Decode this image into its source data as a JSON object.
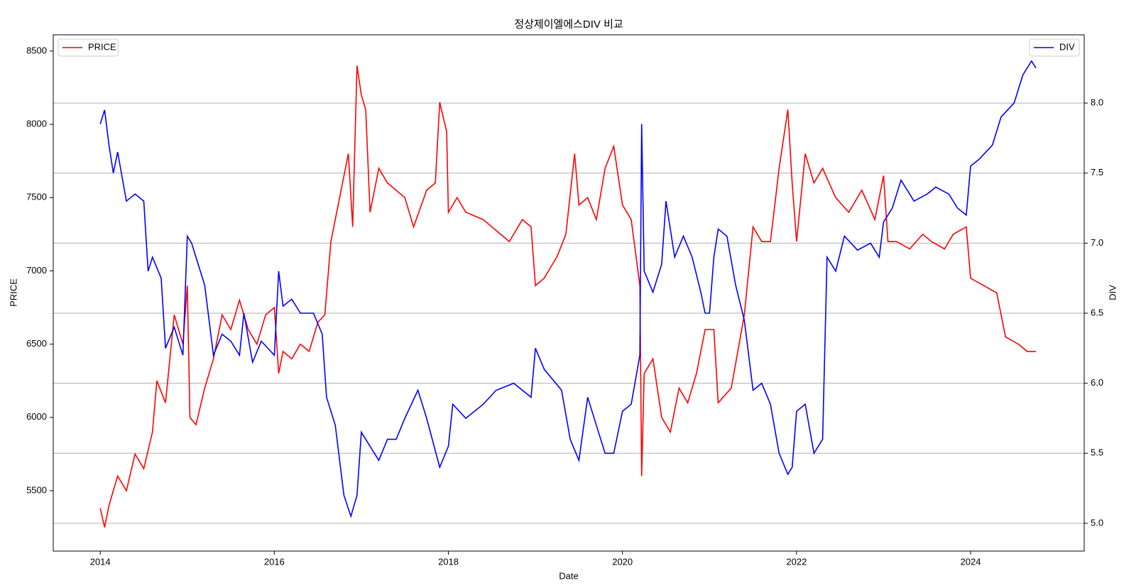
{
  "chart_data": {
    "type": "line",
    "title": "정상제이엘에스DIV 비교",
    "xlabel": "Date",
    "ylabel": "PRICE",
    "y2label": "DIV",
    "xlim": [
      2013.46,
      2025.305
    ],
    "xticks": [
      2014,
      2016,
      2018,
      2020,
      2022,
      2024
    ],
    "ylim": [
      5088,
      8611
    ],
    "yticks": [
      5500,
      6000,
      6500,
      7000,
      7500,
      8000,
      8500
    ],
    "y2lim": [
      4.802,
      8.487
    ],
    "y2ticks": [
      {
        "value": 5,
        "label": "5.0"
      },
      5.5,
      {
        "value": 6,
        "label": "6.0"
      },
      6.5,
      {
        "value": 7,
        "label": "7.0"
      },
      7.5,
      {
        "value": 8,
        "label": "8.0"
      }
    ],
    "grid": "y2",
    "legend": "upper left",
    "legend2": "upper right",
    "series": [
      {
        "name": "PRICE",
        "color": "#ff0000",
        "axis": "y",
        "x": [
          2014.0,
          2014.05,
          2014.1,
          2014.2,
          2014.3,
          2014.4,
          2014.5,
          2014.6,
          2014.65,
          2014.75,
          2014.85,
          2014.95,
          2015.0,
          2015.03,
          2015.1,
          2015.2,
          2015.3,
          2015.4,
          2015.5,
          2015.6,
          2015.7,
          2015.8,
          2015.9,
          2016.0,
          2016.05,
          2016.1,
          2016.2,
          2016.3,
          2016.4,
          2016.5,
          2016.58,
          2016.65,
          2016.75,
          2016.85,
          2016.9,
          2016.95,
          2017.0,
          2017.05,
          2017.1,
          2017.2,
          2017.3,
          2017.5,
          2017.6,
          2017.75,
          2017.85,
          2017.9,
          2017.98,
          2018.0,
          2018.1,
          2018.2,
          2018.4,
          2018.6,
          2018.7,
          2018.85,
          2018.95,
          2019.0,
          2019.1,
          2019.25,
          2019.35,
          2019.45,
          2019.5,
          2019.6,
          2019.7,
          2019.8,
          2019.9,
          2020.0,
          2020.1,
          2020.2,
          2020.22,
          2020.25,
          2020.35,
          2020.45,
          2020.55,
          2020.65,
          2020.75,
          2020.85,
          2020.95,
          2021.05,
          2021.1,
          2021.25,
          2021.4,
          2021.5,
          2021.6,
          2021.7,
          2021.8,
          2021.9,
          2021.95,
          2022.0,
          2022.1,
          2022.2,
          2022.3,
          2022.45,
          2022.6,
          2022.75,
          2022.9,
          2023.0,
          2023.05,
          2023.15,
          2023.3,
          2023.45,
          2023.55,
          2023.7,
          2023.8,
          2023.95,
          2024.0,
          2024.15,
          2024.3,
          2024.4,
          2024.55,
          2024.65,
          2024.75
        ],
        "values": [
          5380,
          5250,
          5400,
          5600,
          5500,
          5750,
          5650,
          5900,
          6250,
          6100,
          6700,
          6500,
          6900,
          6000,
          5950,
          6200,
          6400,
          6700,
          6600,
          6800,
          6600,
          6500,
          6700,
          6750,
          6300,
          6450,
          6400,
          6500,
          6450,
          6650,
          6700,
          7200,
          7500,
          7800,
          7300,
          8400,
          8200,
          8100,
          7400,
          7700,
          7600,
          7500,
          7300,
          7550,
          7600,
          8150,
          7950,
          7400,
          7500,
          7400,
          7350,
          7250,
          7200,
          7350,
          7300,
          6900,
          6950,
          7100,
          7250,
          7800,
          7450,
          7500,
          7350,
          7700,
          7850,
          7450,
          7350,
          6900,
          5600,
          6300,
          6400,
          6000,
          5900,
          6200,
          6100,
          6300,
          6600,
          6600,
          6100,
          6200,
          6700,
          7300,
          7200,
          7200,
          7700,
          8100,
          7600,
          7200,
          7800,
          7600,
          7700,
          7500,
          7400,
          7550,
          7350,
          7650,
          7200,
          7200,
          7150,
          7250,
          7200,
          7150,
          7250,
          7300,
          6950,
          6900,
          6850,
          6550,
          6500,
          6450,
          6450
        ]
      },
      {
        "name": "DIV",
        "color": "#0000ff",
        "axis": "y2",
        "x": [
          2014.0,
          2014.05,
          2014.1,
          2014.15,
          2014.2,
          2014.3,
          2014.4,
          2014.5,
          2014.55,
          2014.6,
          2014.7,
          2014.75,
          2014.85,
          2014.95,
          2015.0,
          2015.05,
          2015.1,
          2015.2,
          2015.3,
          2015.4,
          2015.5,
          2015.6,
          2015.65,
          2015.75,
          2015.85,
          2016.0,
          2016.05,
          2016.1,
          2016.2,
          2016.3,
          2016.45,
          2016.55,
          2016.6,
          2016.7,
          2016.8,
          2016.88,
          2016.95,
          2017.0,
          2017.1,
          2017.2,
          2017.3,
          2017.4,
          2017.5,
          2017.65,
          2017.75,
          2017.9,
          2018.0,
          2018.05,
          2018.2,
          2018.4,
          2018.55,
          2018.75,
          2018.95,
          2019.0,
          2019.1,
          2019.3,
          2019.4,
          2019.5,
          2019.6,
          2019.7,
          2019.8,
          2019.9,
          2020.0,
          2020.1,
          2020.2,
          2020.22,
          2020.25,
          2020.35,
          2020.45,
          2020.5,
          2020.6,
          2020.7,
          2020.8,
          2020.9,
          2020.95,
          2021.0,
          2021.05,
          2021.1,
          2021.2,
          2021.3,
          2021.4,
          2021.5,
          2021.6,
          2021.7,
          2021.8,
          2021.9,
          2021.95,
          2022.0,
          2022.1,
          2022.2,
          2022.3,
          2022.35,
          2022.45,
          2022.55,
          2022.7,
          2022.85,
          2022.95,
          2023.0,
          2023.1,
          2023.2,
          2023.35,
          2023.5,
          2023.6,
          2023.75,
          2023.85,
          2023.95,
          2024.0,
          2024.1,
          2024.25,
          2024.35,
          2024.5,
          2024.6,
          2024.7,
          2024.75
        ],
        "values": [
          7.85,
          7.95,
          7.7,
          7.5,
          7.65,
          7.3,
          7.35,
          7.3,
          6.8,
          6.9,
          6.75,
          6.25,
          6.4,
          6.2,
          7.05,
          7.0,
          6.9,
          6.7,
          6.2,
          6.35,
          6.3,
          6.2,
          6.5,
          6.15,
          6.3,
          6.2,
          6.8,
          6.55,
          6.6,
          6.5,
          6.5,
          6.35,
          5.9,
          5.7,
          5.2,
          5.05,
          5.2,
          5.65,
          5.55,
          5.45,
          5.6,
          5.6,
          5.75,
          5.95,
          5.75,
          5.4,
          5.55,
          5.85,
          5.75,
          5.85,
          5.95,
          6.0,
          5.9,
          6.25,
          6.1,
          5.95,
          5.6,
          5.45,
          5.9,
          5.7,
          5.5,
          5.5,
          5.8,
          5.85,
          6.2,
          7.85,
          6.8,
          6.65,
          6.85,
          7.3,
          6.9,
          7.05,
          6.9,
          6.65,
          6.5,
          6.5,
          6.9,
          7.1,
          7.05,
          6.7,
          6.45,
          5.95,
          6.0,
          5.85,
          5.5,
          5.35,
          5.4,
          5.8,
          5.85,
          5.5,
          5.6,
          6.9,
          6.8,
          7.05,
          6.95,
          7.0,
          6.9,
          7.15,
          7.25,
          7.45,
          7.3,
          7.35,
          7.4,
          7.35,
          7.25,
          7.2,
          7.55,
          7.6,
          7.7,
          7.9,
          8.0,
          8.2,
          8.3,
          8.25
        ]
      }
    ]
  }
}
